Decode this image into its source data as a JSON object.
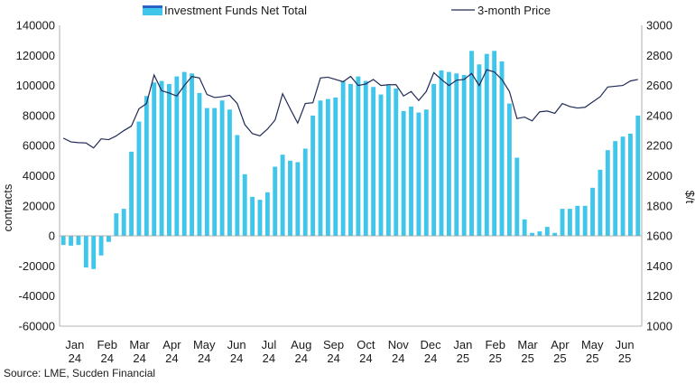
{
  "chart_data": {
    "type": "bar",
    "title": "",
    "source": "Source: LME, Sucden Financial",
    "legend": [
      {
        "label": "Investment Funds Net Total",
        "kind": "bar",
        "color": "#3fc6ea"
      },
      {
        "label": "3-month Price",
        "kind": "line",
        "color": "#1f2a55"
      }
    ],
    "legend_position": "top",
    "left_axis": {
      "label": "contracts",
      "range": [
        -60000,
        140000
      ],
      "ticks": [
        "-60000",
        "-40000",
        "-20000",
        "0",
        "20000",
        "40000",
        "60000",
        "80000",
        "100000",
        "120000",
        "140000"
      ]
    },
    "right_axis": {
      "label": "$/t",
      "range": [
        1000,
        3000
      ],
      "ticks": [
        "1000",
        "1200",
        "1400",
        "1600",
        "1800",
        "2000",
        "2200",
        "2400",
        "2600",
        "2800",
        "3000"
      ]
    },
    "x_labels": [
      {
        "month": "Jan",
        "year": "24"
      },
      {
        "month": "Feb",
        "year": "24"
      },
      {
        "month": "Mar",
        "year": "24"
      },
      {
        "month": "Apr",
        "year": "24"
      },
      {
        "month": "May",
        "year": "24"
      },
      {
        "month": "Jun",
        "year": "24"
      },
      {
        "month": "Jul",
        "year": "24"
      },
      {
        "month": "Aug",
        "year": "24"
      },
      {
        "month": "Sep",
        "year": "24"
      },
      {
        "month": "Oct",
        "year": "24"
      },
      {
        "month": "Nov",
        "year": "24"
      },
      {
        "month": "Dec",
        "year": "24"
      },
      {
        "month": "Jan",
        "year": "25"
      },
      {
        "month": "Feb",
        "year": "25"
      },
      {
        "month": "Mar",
        "year": "25"
      },
      {
        "month": "Apr",
        "year": "25"
      },
      {
        "month": "May",
        "year": "25"
      },
      {
        "month": "Jun",
        "year": "25"
      }
    ],
    "grid": false,
    "series": [
      {
        "name": "Investment Funds Net Total",
        "axis": "left",
        "type": "bar",
        "values": [
          -6000,
          -6500,
          -6000,
          -21000,
          -22000,
          -13000,
          -4000,
          15000,
          18000,
          56000,
          76000,
          93000,
          102000,
          103000,
          101000,
          106000,
          109000,
          108000,
          95000,
          85000,
          85000,
          90000,
          84000,
          67000,
          41000,
          26000,
          24000,
          29000,
          46000,
          54000,
          50000,
          49000,
          58000,
          80000,
          90000,
          91000,
          92000,
          103000,
          101000,
          106000,
          103000,
          99000,
          94000,
          100000,
          98000,
          83000,
          86000,
          82000,
          84000,
          101000,
          110000,
          109000,
          108000,
          107000,
          123000,
          114000,
          121000,
          123000,
          116000,
          88000,
          52000,
          11000,
          2000,
          3000,
          6000,
          2000,
          18000,
          18000,
          20000,
          20000,
          32000,
          44000,
          57000,
          63000,
          66000,
          68000,
          80000
        ]
      },
      {
        "name": "3-month Price",
        "axis": "right",
        "type": "line",
        "values": [
          2250,
          2225,
          2220,
          2218,
          2185,
          2245,
          2240,
          2265,
          2300,
          2330,
          2445,
          2480,
          2670,
          2565,
          2550,
          2530,
          2600,
          2660,
          2650,
          2540,
          2520,
          2525,
          2535,
          2480,
          2340,
          2280,
          2265,
          2310,
          2370,
          2545,
          2445,
          2350,
          2480,
          2485,
          2650,
          2655,
          2640,
          2625,
          2660,
          2600,
          2610,
          2640,
          2600,
          2605,
          2605,
          2530,
          2560,
          2500,
          2560,
          2685,
          2640,
          2600,
          2635,
          2640,
          2680,
          2600,
          2705,
          2690,
          2640,
          2560,
          2380,
          2390,
          2365,
          2425,
          2430,
          2415,
          2480,
          2460,
          2450,
          2455,
          2490,
          2525,
          2590,
          2595,
          2600,
          2630,
          2640
        ]
      }
    ]
  }
}
